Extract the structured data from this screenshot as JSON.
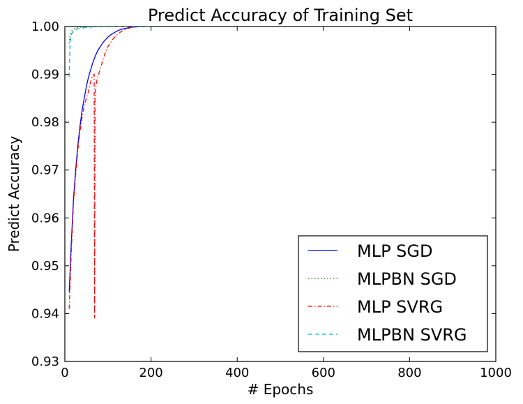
{
  "chart_data": {
    "type": "line",
    "title": "Predict Accuracy of Training Set",
    "xlabel": "# Epochs",
    "ylabel": "Predict Accuracy",
    "xlim": [
      0,
      1000
    ],
    "ylim": [
      0.93,
      1.0
    ],
    "xticks": [
      0,
      200,
      400,
      600,
      800,
      1000
    ],
    "xtick_labels": [
      "0",
      "200",
      "400",
      "600",
      "800",
      "1000"
    ],
    "yticks": [
      0.93,
      0.94,
      0.95,
      0.96,
      0.97,
      0.98,
      0.99,
      1.0
    ],
    "ytick_labels": [
      "0.93",
      "0.94",
      "0.95",
      "0.96",
      "0.97",
      "0.98",
      "0.99",
      "1.00"
    ],
    "grid": false,
    "legend_position": "lower-right",
    "series": [
      {
        "name": "MLP SGD",
        "color": "#0000ff",
        "dash": "solid",
        "x": [
          10,
          15,
          20,
          25,
          30,
          35,
          40,
          45,
          50,
          55,
          60,
          65,
          70,
          75,
          80,
          90,
          100,
          110,
          120,
          130,
          140,
          150,
          160,
          170,
          180,
          190
        ],
        "y": [
          0.9445,
          0.955,
          0.964,
          0.97,
          0.975,
          0.979,
          0.9825,
          0.985,
          0.9875,
          0.9895,
          0.991,
          0.9925,
          0.9937,
          0.9947,
          0.9955,
          0.9968,
          0.9978,
          0.9985,
          0.999,
          0.9994,
          0.9996,
          0.9998,
          0.9999,
          0.99995,
          1.0,
          1.0
        ]
      },
      {
        "name": "MLPBN SGD",
        "color": "#008000",
        "dash": "dotted",
        "x": [
          10,
          12,
          15,
          20,
          25,
          30,
          40,
          60,
          80,
          100,
          150,
          200
        ],
        "y": [
          0.9965,
          0.998,
          0.999,
          0.9995,
          0.9997,
          0.9998,
          0.9999,
          1.0,
          1.0,
          1.0,
          1.0,
          1.0
        ]
      },
      {
        "name": "MLP SVRG",
        "color": "#ff0000",
        "dash": "dashdot",
        "x": [
          10,
          15,
          20,
          25,
          30,
          35,
          40,
          45,
          50,
          55,
          60,
          65,
          68,
          69,
          70,
          71,
          72,
          75,
          80,
          85,
          90,
          95,
          100,
          110,
          120,
          130,
          140,
          150,
          160,
          170,
          180,
          190
        ],
        "y": [
          0.941,
          0.953,
          0.963,
          0.969,
          0.974,
          0.978,
          0.981,
          0.9835,
          0.985,
          0.9865,
          0.9885,
          0.9898,
          0.99,
          0.939,
          0.985,
          0.986,
          0.9875,
          0.989,
          0.9905,
          0.992,
          0.9935,
          0.9948,
          0.9958,
          0.9972,
          0.9982,
          0.9989,
          0.9994,
          0.9997,
          0.9999,
          1.0,
          1.0,
          1.0
        ]
      },
      {
        "name": "MLPBN SVRG",
        "color": "#00bfbf",
        "dash": "dashed",
        "x": [
          10,
          12,
          14,
          16,
          18,
          20,
          25,
          30,
          40,
          50,
          60,
          80,
          100,
          150,
          200
        ],
        "y": [
          0.9895,
          0.9965,
          0.998,
          0.9985,
          0.9988,
          0.999,
          0.9993,
          0.9995,
          0.9997,
          0.9998,
          0.9999,
          1.0,
          1.0,
          1.0,
          1.0
        ]
      }
    ]
  }
}
